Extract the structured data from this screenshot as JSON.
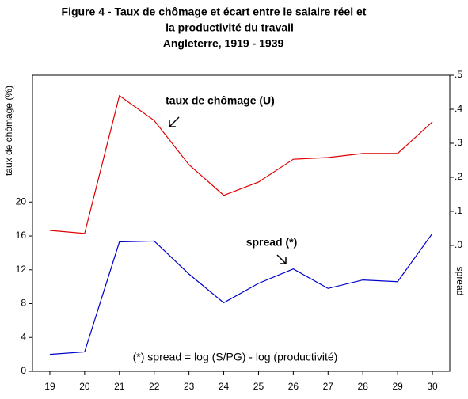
{
  "chart_data": {
    "type": "line",
    "title": [
      "Figure 4 - Taux de chômage et écart entre le salaire réel et",
      "la productivité du travail",
      "Angleterre, 1919 - 1939"
    ],
    "ylabel": "taux de chômage (%)",
    "y2label": "spread",
    "annotations": [
      "taux de chômage (U)",
      "spread (*)",
      "(*) spread = log (S/PG) - log (productivité)"
    ],
    "categories": [
      "19",
      "20",
      "21",
      "22",
      "23",
      "24",
      "25",
      "26",
      "27",
      "28",
      "29",
      "30"
    ],
    "series": [
      {
        "color": "#e00000",
        "axis": "y2",
        "values": [
          0.044,
          0.035,
          0.44,
          0.367,
          0.237,
          0.147,
          0.186,
          0.253,
          0.258,
          0.27,
          0.27,
          0.363
        ]
      },
      {
        "color": "#0000cc",
        "values": [
          2.0,
          2.3,
          15.3,
          15.4,
          11.5,
          8.1,
          10.4,
          12.1,
          9.8,
          10.8,
          10.6,
          16.3
        ]
      }
    ],
    "ylim": [
      0,
      35
    ],
    "yticks": [
      0,
      4,
      8,
      12,
      16,
      20
    ],
    "y2lim": [
      -0.37,
      0.5
    ],
    "y2ticks": [
      {
        "value": 0,
        "label": ".0"
      },
      {
        "value": 0.1,
        "label": ".1"
      },
      {
        "value": 0.2,
        "label": ".2"
      },
      {
        "value": 0.3,
        "label": ".3"
      },
      {
        "value": 0.4,
        "label": ".4"
      },
      {
        "value": 0.5,
        "label": ".5"
      }
    ]
  }
}
